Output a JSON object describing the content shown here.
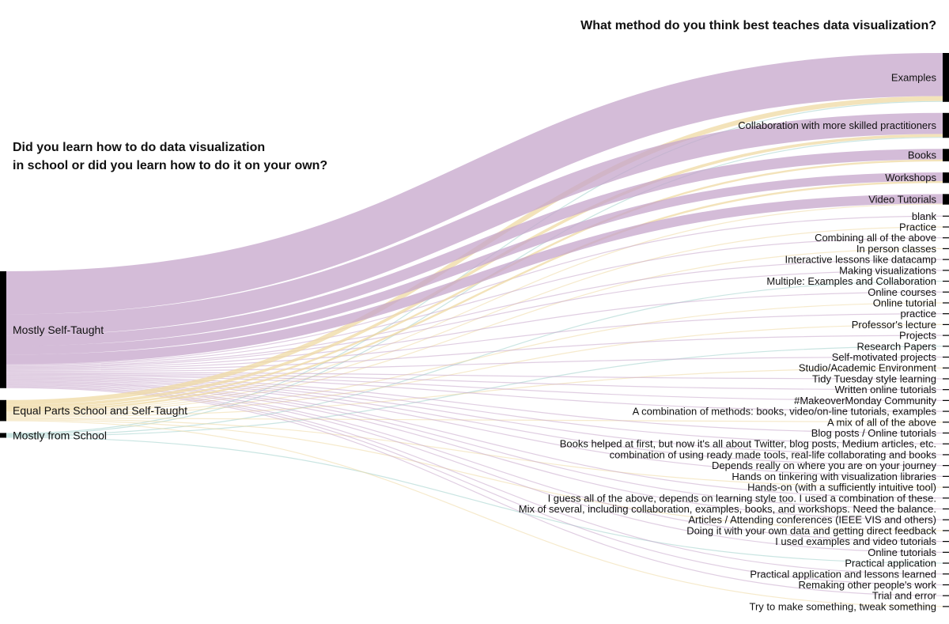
{
  "chart_data": {
    "type": "sankey",
    "left_title": [
      "Did you learn how to do data visualization",
      "in school or did you learn how to do it on your own?"
    ],
    "right_title": "What method do you think best teaches data visualization?",
    "colors": {
      "Mostly Self-Taught": "#c6a6cb",
      "Equal Parts School and Self-Taught": "#efd9a3",
      "Mostly from School": "#9fcfca",
      "node": "#000000"
    },
    "sources": [
      "Mostly Self-Taught",
      "Equal Parts School and Self-Taught",
      "Mostly from School"
    ],
    "targets": [
      "Examples",
      "Collaboration with more skilled practitioners",
      "Books",
      "Workshops",
      "Video Tutorials",
      "blank",
      "Practice",
      "Combining all of the above",
      "In person classes",
      "Interactive lessons like datacamp",
      "Making visualizations",
      "Multiple: Examples and Collaboration",
      "Online courses",
      "Online tutorial",
      "practice",
      "Professor's lecture",
      "Projects",
      "Research Papers",
      "Self-motivated projects",
      "Studio/Academic Environment",
      "Tidy Tuesday style learning",
      "Written online tutorials",
      "#MakeoverMonday Community",
      "A combination of methods: books, video/on-line tutorials, examples",
      "A mix of all of the above",
      "Blog posts / Online tutorials",
      "Books helped at first, but now it's all about Twitter, blog posts, Medium articles, etc.",
      "combination of using ready made tools, real-life collaborating and books",
      "Depends really on where you are on your journey",
      "Hands on tinkering with visualization libraries",
      "Hands-on (with a sufficiently intuitive tool)",
      "I guess all of the above, depends on learning style too. I used a combination of these.",
      "Mix of several, including collaboration, examples, books, and workshops. Need the balance.",
      "Articles / Attending conferences (IEEE VIS and others)",
      "Doing it with your own data and getting direct feedback",
      "I used examples and video tutorials",
      "Online tutorials",
      "Practical application",
      "Practical application and lessons learned",
      "Remaking other people's work",
      "Trial and error",
      "Try to make something, tweak something"
    ],
    "links": [
      {
        "source": "Mostly Self-Taught",
        "target": "Examples",
        "value": 45
      },
      {
        "source": "Equal Parts School and Self-Taught",
        "target": "Examples",
        "value": 5
      },
      {
        "source": "Mostly from School",
        "target": "Examples",
        "value": 1
      },
      {
        "source": "Mostly Self-Taught",
        "target": "Collaboration with more skilled practitioners",
        "value": 22
      },
      {
        "source": "Equal Parts School and Self-Taught",
        "target": "Collaboration with more skilled practitioners",
        "value": 3
      },
      {
        "source": "Mostly from School",
        "target": "Collaboration with more skilled practitioners",
        "value": 1
      },
      {
        "source": "Mostly Self-Taught",
        "target": "Books",
        "value": 11
      },
      {
        "source": "Equal Parts School and Self-Taught",
        "target": "Books",
        "value": 2
      },
      {
        "source": "Mostly Self-Taught",
        "target": "Workshops",
        "value": 9
      },
      {
        "source": "Equal Parts School and Self-Taught",
        "target": "Workshops",
        "value": 2
      },
      {
        "source": "Mostly Self-Taught",
        "target": "Video Tutorials",
        "value": 10
      },
      {
        "source": "Equal Parts School and Self-Taught",
        "target": "Video Tutorials",
        "value": 1
      },
      {
        "source": "Mostly Self-Taught",
        "target": "blank",
        "value": 1
      },
      {
        "source": "Equal Parts School and Self-Taught",
        "target": "Practice",
        "value": 1
      },
      {
        "source": "Mostly Self-Taught",
        "target": "Combining all of the above",
        "value": 1
      },
      {
        "source": "Equal Parts School and Self-Taught",
        "target": "In person classes",
        "value": 1
      },
      {
        "source": "Mostly Self-Taught",
        "target": "Interactive lessons like datacamp",
        "value": 1
      },
      {
        "source": "Mostly Self-Taught",
        "target": "Making visualizations",
        "value": 1
      },
      {
        "source": "Mostly from School",
        "target": "Multiple: Examples and Collaboration",
        "value": 1
      },
      {
        "source": "Mostly Self-Taught",
        "target": "Online courses",
        "value": 1
      },
      {
        "source": "Equal Parts School and Self-Taught",
        "target": "Online tutorial",
        "value": 1
      },
      {
        "source": "Mostly Self-Taught",
        "target": "practice",
        "value": 1
      },
      {
        "source": "Equal Parts School and Self-Taught",
        "target": "Professor's lecture",
        "value": 1
      },
      {
        "source": "Mostly Self-Taught",
        "target": "Projects",
        "value": 1
      },
      {
        "source": "Mostly from School",
        "target": "Research Papers",
        "value": 1
      },
      {
        "source": "Mostly Self-Taught",
        "target": "Self-motivated projects",
        "value": 1
      },
      {
        "source": "Equal Parts School and Self-Taught",
        "target": "Studio/Academic Environment",
        "value": 1
      },
      {
        "source": "Mostly Self-Taught",
        "target": "Tidy Tuesday style learning",
        "value": 1
      },
      {
        "source": "Mostly Self-Taught",
        "target": "Written online tutorials",
        "value": 1
      },
      {
        "source": "Mostly Self-Taught",
        "target": "#MakeoverMonday Community",
        "value": 1
      },
      {
        "source": "Mostly Self-Taught",
        "target": "A combination of methods: books, video/on-line tutorials, examples",
        "value": 1
      },
      {
        "source": "Equal Parts School and Self-Taught",
        "target": "A mix of all of the above",
        "value": 1
      },
      {
        "source": "Mostly Self-Taught",
        "target": "Blog posts / Online tutorials",
        "value": 1
      },
      {
        "source": "Mostly Self-Taught",
        "target": "Books helped at first, but now it's all about Twitter, blog posts, Medium articles, etc.",
        "value": 1
      },
      {
        "source": "Mostly Self-Taught",
        "target": "combination of using ready made tools, real-life collaborating and books",
        "value": 1
      },
      {
        "source": "Mostly Self-Taught",
        "target": "Depends really on where you are on your journey",
        "value": 1
      },
      {
        "source": "Mostly Self-Taught",
        "target": "Hands on tinkering with visualization libraries",
        "value": 1
      },
      {
        "source": "Equal Parts School and Self-Taught",
        "target": "Hands-on (with a sufficiently intuitive tool)",
        "value": 1
      },
      {
        "source": "Mostly Self-Taught",
        "target": "I guess all of the above, depends on learning style too. I used a combination of these.",
        "value": 1
      },
      {
        "source": "Mostly Self-Taught",
        "target": "Mix of several, including collaboration, examples, books, and workshops. Need the balance.",
        "value": 1
      },
      {
        "source": "Mostly Self-Taught",
        "target": "Articles / Attending conferences (IEEE VIS and others)",
        "value": 1
      },
      {
        "source": "Equal Parts School and Self-Taught",
        "target": "Doing it with your own data and getting direct feedback",
        "value": 1
      },
      {
        "source": "Mostly Self-Taught",
        "target": "I used examples and video tutorials",
        "value": 1
      },
      {
        "source": "Mostly Self-Taught",
        "target": "Online tutorials",
        "value": 1
      },
      {
        "source": "Mostly from School",
        "target": "Practical application",
        "value": 1
      },
      {
        "source": "Mostly Self-Taught",
        "target": "Practical application and lessons learned",
        "value": 1
      },
      {
        "source": "Mostly Self-Taught",
        "target": "Remaking other people's work",
        "value": 1
      },
      {
        "source": "Mostly Self-Taught",
        "target": "Trial and error",
        "value": 1
      },
      {
        "source": "Equal Parts School and Self-Taught",
        "target": "Try to make something, tweak something",
        "value": 1
      }
    ]
  }
}
